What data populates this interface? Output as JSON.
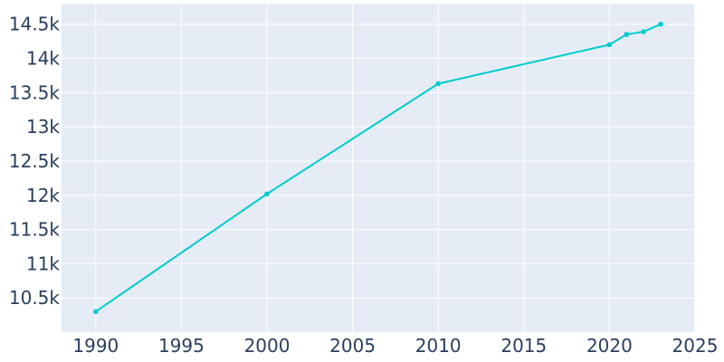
{
  "chart_data": {
    "type": "line",
    "title": "",
    "xlabel": "",
    "ylabel": "",
    "x": [
      1990,
      2000,
      2010,
      2020,
      2021,
      2022,
      2023
    ],
    "series": [
      {
        "values": [
          10300,
          12020,
          13630,
          14200,
          14350,
          14390,
          14500
        ]
      }
    ],
    "xlim": [
      1988,
      2025
    ],
    "ylim": [
      10000,
      14800
    ],
    "x_ticks": [
      1990,
      1995,
      2000,
      2005,
      2010,
      2015,
      2020,
      2025
    ],
    "x_tick_labels": [
      "1990",
      "1995",
      "2000",
      "2005",
      "2010",
      "2015",
      "2020",
      "2025"
    ],
    "y_ticks": [
      10500,
      11000,
      11500,
      12000,
      12500,
      13000,
      13500,
      14000,
      14500
    ],
    "y_tick_labels": [
      "10.5k",
      "11k",
      "11.5k",
      "12k",
      "12.5k",
      "13k",
      "13.5k",
      "14k",
      "14.5k"
    ],
    "grid": true,
    "colors": {
      "line": "#00cccc",
      "plot_bg": "#e5ecf6",
      "grid": "#ffffff",
      "text": "#2a3f5f"
    }
  }
}
